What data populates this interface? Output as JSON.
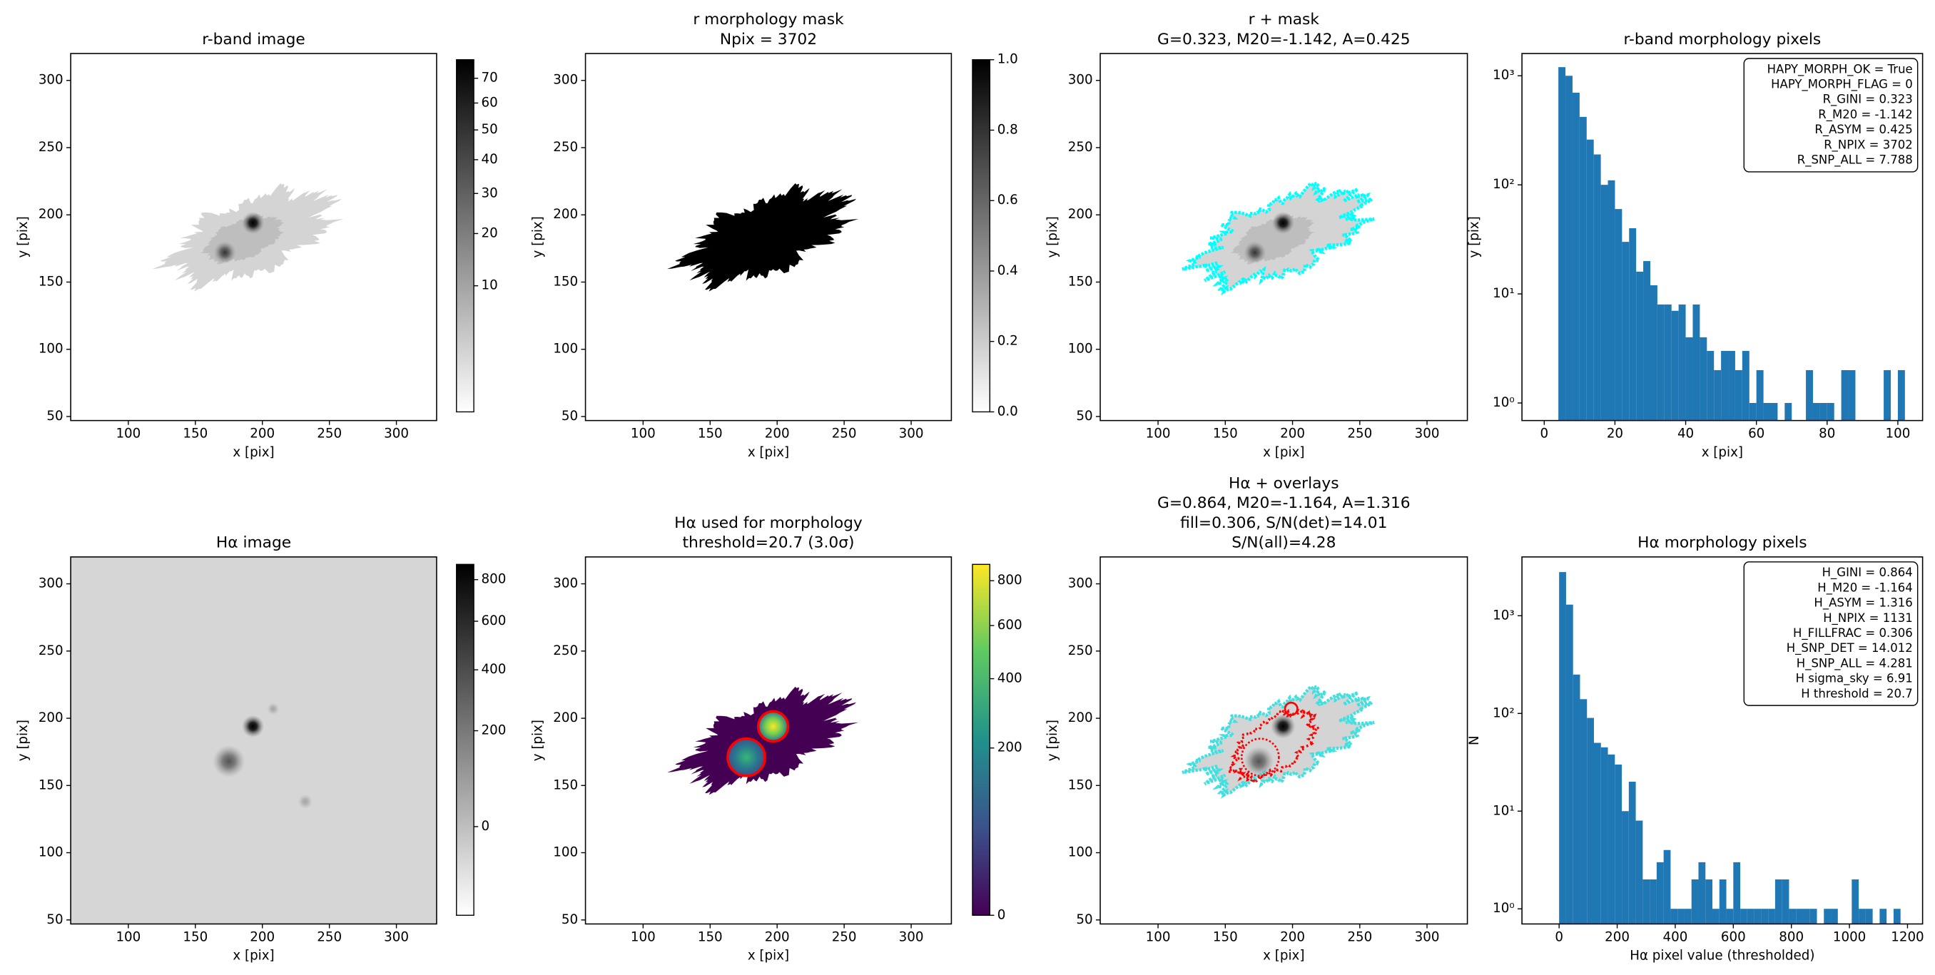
{
  "chart_data": [
    {
      "type": "image",
      "title": "r-band image",
      "x_label": "x [pix]",
      "y_label": "y [pix]",
      "xlim": [
        57,
        330
      ],
      "ylim": [
        47,
        320
      ],
      "xticks": [
        100,
        150,
        200,
        250,
        300
      ],
      "yticks": [
        50,
        100,
        150,
        200,
        250,
        300
      ],
      "colorbar": {
        "cmap": "gray_r",
        "scale": "sqrt",
        "lim": [
          0,
          78
        ],
        "ticks": [
          10,
          20,
          30,
          40,
          50,
          60,
          70
        ]
      }
    },
    {
      "type": "image",
      "title": [
        "r morphology mask",
        "Npix = 3702"
      ],
      "x_label": "x [pix]",
      "y_label": "y [pix]",
      "xlim": [
        57,
        330
      ],
      "ylim": [
        47,
        320
      ],
      "xticks": [
        100,
        150,
        200,
        250,
        300
      ],
      "yticks": [
        50,
        100,
        150,
        200,
        250,
        300
      ],
      "colorbar": {
        "cmap": "gray_r",
        "scale": "linear",
        "lim": [
          0,
          1
        ],
        "ticks": [
          {
            "value": 0,
            "label": "0.0"
          },
          0.2,
          0.4,
          0.6,
          0.8,
          {
            "value": 1,
            "label": "1.0"
          }
        ]
      }
    },
    {
      "type": "image",
      "title": [
        "r + mask",
        "G=0.323, M20=-1.142, A=0.425"
      ],
      "x_label": "x [pix]",
      "y_label": "y [pix]",
      "xlim": [
        57,
        330
      ],
      "ylim": [
        47,
        320
      ],
      "xticks": [
        100,
        150,
        200,
        250,
        300
      ],
      "yticks": [
        50,
        100,
        150,
        200,
        250,
        300
      ]
    },
    {
      "type": "histogram",
      "title": "r-band morphology pixels",
      "x_label": "x [pix]",
      "y_label": "y [pix]",
      "color": "#1f77b4",
      "xlim": [
        -6.3,
        107
      ],
      "ylim": [
        0.69,
        1600
      ],
      "yscale": "log",
      "xticks": [
        0,
        20,
        40,
        60,
        80,
        100
      ],
      "yticks": [
        {
          "value": 1,
          "label": "10⁰"
        },
        {
          "value": 10,
          "label": "10¹"
        },
        {
          "value": 100,
          "label": "10²"
        },
        {
          "value": 1000,
          "label": "10³"
        }
      ],
      "bins": [
        4,
        6,
        8,
        10,
        12,
        14,
        16,
        18,
        20,
        22,
        24,
        26,
        28,
        30,
        32,
        34,
        36,
        38,
        40,
        42,
        44,
        46,
        48,
        50,
        52,
        54,
        56,
        58,
        60,
        62,
        64,
        66,
        68,
        70,
        72,
        74,
        76,
        78,
        80,
        82,
        84,
        86,
        88,
        90,
        92,
        94,
        96,
        98,
        100,
        102
      ],
      "counts": [
        1200,
        1000,
        700,
        420,
        260,
        190,
        100,
        110,
        60,
        30,
        40,
        16,
        20,
        12,
        8,
        8,
        7,
        8,
        4,
        8,
        4,
        3,
        2,
        3,
        3,
        2,
        3,
        1,
        2,
        1,
        1,
        0,
        1,
        0,
        0,
        2,
        1,
        1,
        1,
        0,
        2,
        2,
        0,
        0,
        0,
        0,
        2,
        0,
        2
      ],
      "annotation": [
        "HAPY_MORPH_OK = True",
        "HAPY_MORPH_FLAG = 0",
        "R_GINI = 0.323",
        "R_M20 = -1.142",
        "R_ASYM = 0.425",
        "R_NPIX = 3702",
        "R_SNP_ALL = 7.788"
      ]
    },
    {
      "type": "image",
      "title": "Hα image",
      "x_label": "x [pix]",
      "y_label": "y [pix]",
      "xlim": [
        57,
        330
      ],
      "ylim": [
        47,
        320
      ],
      "xticks": [
        100,
        150,
        200,
        250,
        300
      ],
      "yticks": [
        50,
        100,
        150,
        200,
        250,
        300
      ],
      "colorbar": {
        "cmap": "gray_r",
        "scale": "sqrt",
        "lim": [
          -60,
          880
        ],
        "ticks": [
          0,
          200,
          400,
          600,
          800
        ]
      }
    },
    {
      "type": "image",
      "title": [
        "Hα used for morphology",
        "threshold=20.7 (3.0σ)"
      ],
      "x_label": "x [pix]",
      "y_label": "y [pix]",
      "xlim": [
        57,
        330
      ],
      "ylim": [
        47,
        320
      ],
      "xticks": [
        100,
        150,
        200,
        250,
        300
      ],
      "yticks": [
        50,
        100,
        150,
        200,
        250,
        300
      ],
      "colorbar": {
        "cmap": "viridis",
        "scale": "sqrt",
        "lim": [
          0,
          880
        ],
        "ticks": [
          0,
          200,
          400,
          600,
          800
        ]
      }
    },
    {
      "type": "image",
      "title": [
        "Hα + overlays",
        "G=0.864, M20=-1.164, A=1.316",
        "fill=0.306, S/N(det)=14.01",
        "S/N(all)=4.28"
      ],
      "x_label": "x [pix]",
      "y_label": "y [pix]",
      "xlim": [
        57,
        330
      ],
      "ylim": [
        47,
        320
      ],
      "xticks": [
        100,
        150,
        200,
        250,
        300
      ],
      "yticks": [
        50,
        100,
        150,
        200,
        250,
        300
      ]
    },
    {
      "type": "histogram",
      "title": "Hα morphology pixels",
      "x_label": "Hα pixel value (thresholded)",
      "y_label": "N",
      "color": "#1f77b4",
      "xlim": [
        -128,
        1252
      ],
      "ylim": [
        0.7,
        4000
      ],
      "yscale": "log",
      "xticks": [
        0,
        200,
        400,
        600,
        800,
        1000,
        1200
      ],
      "yticks": [
        {
          "value": 1,
          "label": "10⁰"
        },
        {
          "value": 10,
          "label": "10¹"
        },
        {
          "value": 100,
          "label": "10²"
        },
        {
          "value": 1000,
          "label": "10³"
        }
      ],
      "bins": [
        0,
        24,
        48,
        72,
        96,
        120,
        144,
        168,
        192,
        216,
        240,
        264,
        288,
        312,
        336,
        360,
        384,
        408,
        432,
        456,
        480,
        504,
        528,
        552,
        576,
        600,
        624,
        648,
        672,
        696,
        720,
        744,
        768,
        792,
        816,
        840,
        864,
        888,
        912,
        936,
        960,
        984,
        1008,
        1032,
        1056,
        1080,
        1104,
        1128,
        1152,
        1176
      ],
      "counts": [
        2800,
        1300,
        250,
        140,
        90,
        50,
        45,
        38,
        30,
        10,
        20,
        8,
        2,
        2,
        3,
        4,
        1,
        1,
        1,
        2,
        3,
        2,
        1,
        2,
        1,
        3,
        1,
        1,
        1,
        1,
        1,
        2,
        2,
        1,
        1,
        1,
        1,
        0,
        1,
        1,
        0,
        0,
        2,
        1,
        1,
        0,
        1,
        0,
        1
      ],
      "annotation": [
        "H_GINI = 0.864",
        "H_M20 = -1.164",
        "H_ASYM = 1.316",
        "H_NPIX = 1131",
        "H_FILLFRAC = 0.306",
        "H_SNP_DET = 14.012",
        "H_SNP_ALL = 4.281",
        "H sigma_sky = 6.91",
        "H threshold = 20.7"
      ]
    }
  ]
}
